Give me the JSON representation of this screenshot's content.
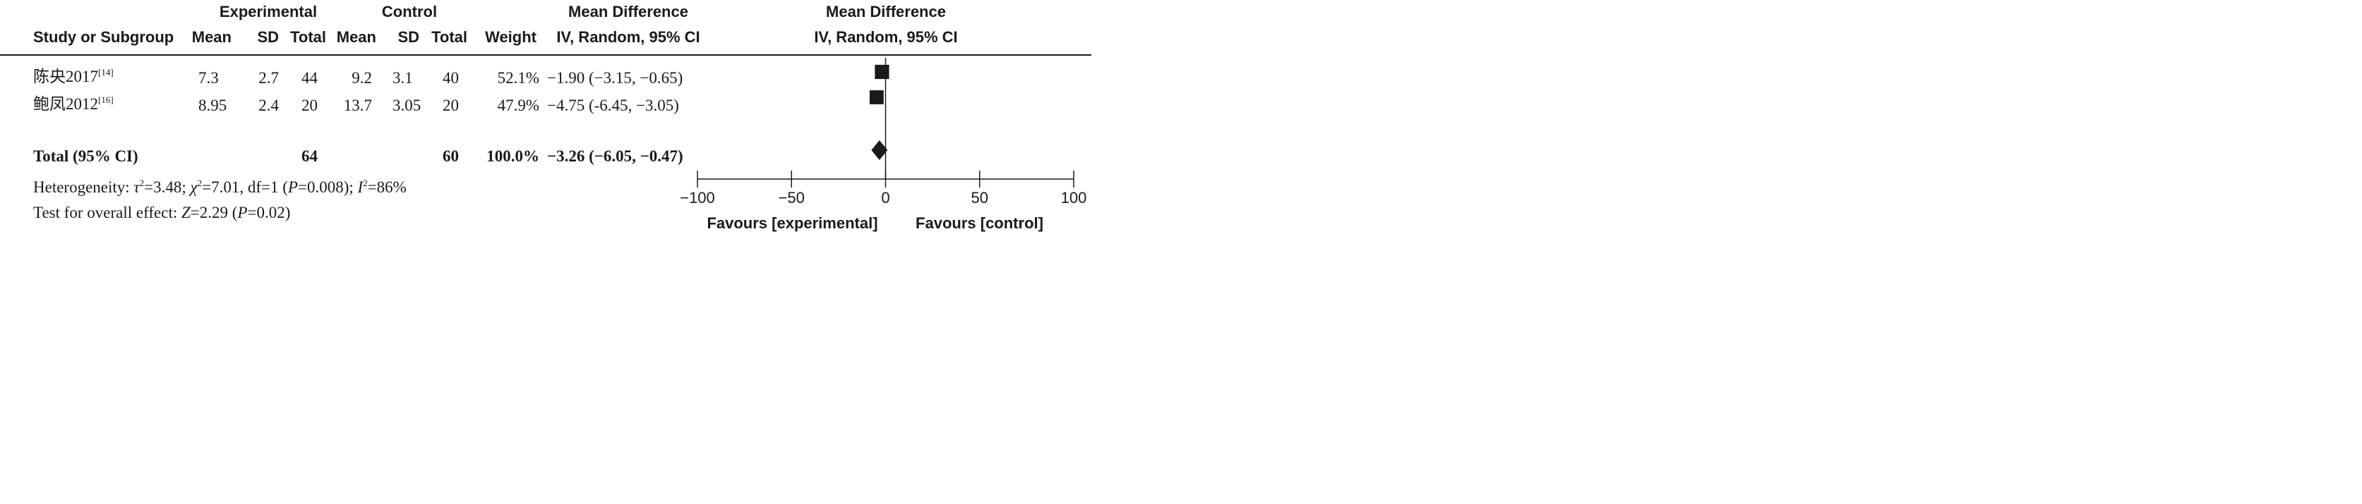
{
  "header": {
    "group1": "Experimental",
    "group2": "Control",
    "effect_left": "Mean Difference",
    "effect_right": "Mean Difference",
    "col_study": "Study or Subgroup",
    "col_mean1": "Mean",
    "col_sd1": "SD",
    "col_total1": "Total",
    "col_mean2": "Mean",
    "col_sd2": "SD",
    "col_total2": "Total",
    "col_weight": "Weight",
    "col_method_left": "IV, Random, 95% CI",
    "col_method_right": "IV, Random, 95% CI"
  },
  "studies": [
    {
      "name": "陈央2017",
      "ref": "[14]",
      "mean1": "7.3",
      "sd1": "2.7",
      "total1": "44",
      "mean2": "9.2",
      "sd2": "3.1",
      "total2": "40",
      "weight": "52.1%",
      "ci": "−1.90 (−3.15, −0.65)"
    },
    {
      "name": "鲍凤2012",
      "ref": "[16]",
      "mean1": "8.95",
      "sd1": "2.4",
      "total1": "20",
      "mean2": "13.7",
      "sd2": "3.05",
      "total2": "20",
      "weight": "47.9%",
      "ci": "−4.75 (-6.45, −3.05)"
    }
  ],
  "total": {
    "label": "Total (95% CI)",
    "total1": "64",
    "total2": "60",
    "weight": "100.0%",
    "ci": "−3.26 (−6.05, −0.47)"
  },
  "heterogeneity": {
    "prefix": "Heterogeneity: ",
    "tau_sym": "τ",
    "tau_val": "=3.48; ",
    "chi_sym": "χ",
    "chi_val": "=7.01, df=1 (",
    "p_sym": "P",
    "p_val": "=0.008); ",
    "i_sym": "I",
    "i_val": "=86%",
    "sq": "2"
  },
  "overall": {
    "prefix": "Test for overall effect: ",
    "z_sym": "Z",
    "z_val": "=2.29 (",
    "p_sym": "P",
    "p_val": "=0.02)"
  },
  "colors": {
    "ink": "#1a1a1a",
    "background": "#ffffff"
  },
  "chart_data": {
    "type": "forest",
    "xlim": [
      -100,
      100
    ],
    "ticks": [
      -100,
      -50,
      0,
      50,
      100
    ],
    "tick_labels": [
      "−100",
      "−50",
      "0",
      "50",
      "100"
    ],
    "favours_left": "Favours [experimental]",
    "favours_right": "Favours [control]",
    "studies": [
      {
        "name": "陈央2017",
        "md": -1.9,
        "lower": -3.15,
        "upper": -0.65,
        "weight": 52.1
      },
      {
        "name": "鲍凤2012",
        "md": -4.75,
        "lower": -6.45,
        "upper": -3.05,
        "weight": 47.9
      }
    ],
    "pooled": {
      "md": -3.26,
      "lower": -6.05,
      "upper": -0.47
    }
  }
}
